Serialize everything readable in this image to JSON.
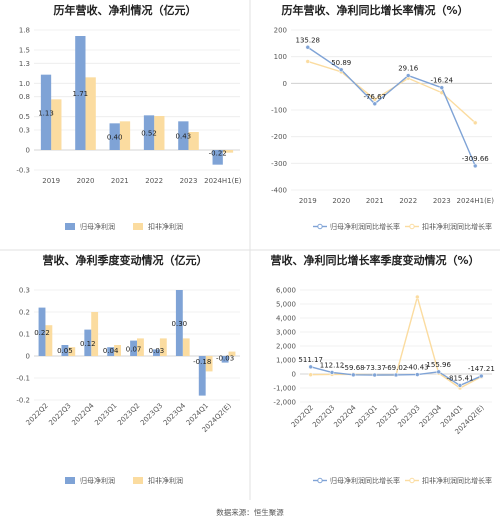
{
  "source": "数据来源：恒生聚源",
  "colors": {
    "bar_primary": "#7fa3d6",
    "bar_secondary": "#fbdca0",
    "line_primary": "#7fa3d6",
    "line_secondary": "#fbdca0"
  },
  "chart_data": [
    {
      "id": "annual_profit",
      "type": "bar",
      "title": "历年营收、净利情况（亿元）",
      "categories": [
        "2019",
        "2020",
        "2021",
        "2022",
        "2023",
        "2024H1(E)"
      ],
      "ylim": [
        -0.3,
        1.8
      ],
      "yticks": [
        -0.3,
        0,
        0.3,
        0.5,
        0.8,
        1.0,
        1.3,
        1.5,
        1.8
      ],
      "ytick_labels": [
        "-0.3",
        "0",
        "0.3",
        "0.5",
        "0.8",
        "1.0",
        "1.3",
        "1.5",
        "1.8"
      ],
      "series": [
        {
          "name": "归母净利润",
          "values": [
            1.13,
            1.71,
            0.4,
            0.52,
            0.43,
            -0.22
          ],
          "labels": [
            "1.13",
            "1.71",
            "0.40",
            "0.52",
            "0.43",
            "-0.22"
          ]
        },
        {
          "name": "扣非净利润",
          "values": [
            0.76,
            1.09,
            0.43,
            0.51,
            0.27,
            -0.04
          ]
        }
      ],
      "legend": "bottom-center",
      "grid": true
    },
    {
      "id": "annual_growth",
      "type": "line",
      "title": "历年营收、净利同比增长率情况（%）",
      "categories": [
        "2019",
        "2020",
        "2021",
        "2022",
        "2023",
        "2024H1(E)"
      ],
      "ylim": [
        -400,
        200
      ],
      "yticks": [
        -400,
        -300,
        -200,
        -100,
        0,
        100,
        200
      ],
      "series": [
        {
          "name": "归母净利润同比增长率",
          "values": [
            135.28,
            50.89,
            -76.67,
            29.16,
            -16.24,
            -309.66
          ],
          "labels": [
            "135.28",
            "50.89",
            "-76.67",
            "29.16",
            "-16.24",
            "-309.66"
          ]
        },
        {
          "name": "扣非净利润同比增长率",
          "values": [
            82,
            43,
            -60,
            19,
            -35,
            -148
          ]
        }
      ],
      "legend": "bottom-center",
      "grid": true
    },
    {
      "id": "quarterly_profit",
      "type": "bar",
      "title": "营收、净利季度变动情况（亿元）",
      "categories": [
        "2022Q2",
        "2022Q3",
        "2022Q4",
        "2023Q1",
        "2023Q2",
        "2023Q3",
        "2023Q4",
        "2024Q1",
        "2024Q2(E)"
      ],
      "ylim": [
        -0.2,
        0.3
      ],
      "yticks": [
        -0.2,
        -0.1,
        0,
        0.1,
        0.2,
        0.3
      ],
      "ytick_labels": [
        "-0.2",
        "-0.1",
        "0",
        "0.1",
        "0.2",
        "0.3"
      ],
      "series": [
        {
          "name": "归母净利润",
          "values": [
            0.22,
            0.05,
            0.12,
            0.04,
            0.07,
            0.03,
            0.3,
            -0.18,
            -0.03
          ],
          "labels": [
            "0.22",
            "0.05",
            "0.12",
            "0.04",
            "0.07",
            "0.03",
            "0.30",
            "-0.18",
            "-0.03"
          ]
        },
        {
          "name": "扣非净利润",
          "values": [
            0.14,
            0.04,
            0.2,
            0.05,
            0.08,
            0.08,
            0.08,
            -0.07,
            0.02
          ]
        }
      ],
      "legend": "bottom-center",
      "grid": true
    },
    {
      "id": "quarterly_growth",
      "type": "line",
      "title": "营收、净利同比增长率季度变动情况（%）",
      "categories": [
        "2022Q2",
        "2022Q3",
        "2022Q4",
        "2023Q1",
        "2023Q2",
        "2023Q3",
        "2023Q4",
        "2024Q1",
        "2024Q2(E)"
      ],
      "ylim": [
        -2000,
        6000
      ],
      "yticks": [
        -2000,
        -1000,
        0,
        1000,
        2000,
        3000,
        4000,
        5000,
        6000
      ],
      "ytick_labels": [
        "-2,000",
        "-1,000",
        "0",
        "1,000",
        "2,000",
        "3,000",
        "4,000",
        "5,000",
        "6,000"
      ],
      "series": [
        {
          "name": "归母净利润同比增长率",
          "values": [
            511.17,
            112.12,
            -59.68,
            -73.37,
            -69.02,
            -40.43,
            155.96,
            -815.41,
            -147.21
          ],
          "labels": [
            "511.17",
            "112.12",
            "-59.68",
            "-73.37",
            "-69.02",
            "-40.43",
            "155.96",
            "-815.41",
            "-147.21"
          ]
        },
        {
          "name": "扣非净利润同比增长率",
          "values": [
            -50,
            -30,
            -20,
            -60,
            -80,
            5500,
            60,
            -1000,
            -200
          ]
        }
      ],
      "legend": "bottom-center",
      "grid": true
    }
  ]
}
